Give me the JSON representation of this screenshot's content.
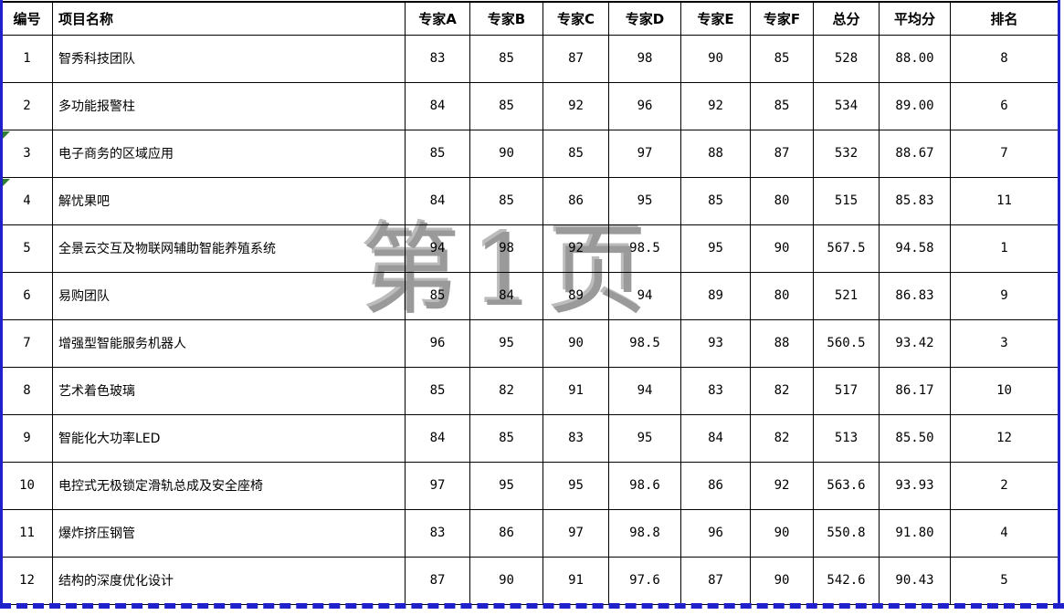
{
  "watermark": {
    "text": "第1页"
  },
  "colors": {
    "page_break_blue": "#2121cc",
    "watermark_gray": "#9a9a9a",
    "error_indicator_green": "#2e7d32",
    "grid_black": "#000000"
  },
  "table": {
    "headers": [
      {
        "key": "id",
        "label": "编号"
      },
      {
        "key": "name",
        "label": "项目名称"
      },
      {
        "key": "expert_a",
        "label": "专家A"
      },
      {
        "key": "expert_b",
        "label": "专家B"
      },
      {
        "key": "expert_c",
        "label": "专家C"
      },
      {
        "key": "expert_d",
        "label": "专家D"
      },
      {
        "key": "expert_e",
        "label": "专家E"
      },
      {
        "key": "expert_f",
        "label": "专家F"
      },
      {
        "key": "total",
        "label": "总分"
      },
      {
        "key": "average",
        "label": "平均分"
      },
      {
        "key": "rank",
        "label": "排名"
      }
    ],
    "error_indicator_rows": [
      3,
      4
    ],
    "rows": [
      {
        "id": "1",
        "name": "智秀科技团队",
        "expert_a": "83",
        "expert_b": "85",
        "expert_c": "87",
        "expert_d": "98",
        "expert_e": "90",
        "expert_f": "85",
        "total": "528",
        "average": "88.00",
        "rank": "8"
      },
      {
        "id": "2",
        "name": "多功能报警柱",
        "expert_a": "84",
        "expert_b": "85",
        "expert_c": "92",
        "expert_d": "96",
        "expert_e": "92",
        "expert_f": "85",
        "total": "534",
        "average": "89.00",
        "rank": "6"
      },
      {
        "id": "3",
        "name": "电子商务的区域应用",
        "expert_a": "85",
        "expert_b": "90",
        "expert_c": "85",
        "expert_d": "97",
        "expert_e": "88",
        "expert_f": "87",
        "total": "532",
        "average": "88.67",
        "rank": "7"
      },
      {
        "id": "4",
        "name": "解忧果吧",
        "expert_a": "84",
        "expert_b": "85",
        "expert_c": "86",
        "expert_d": "95",
        "expert_e": "85",
        "expert_f": "80",
        "total": "515",
        "average": "85.83",
        "rank": "11"
      },
      {
        "id": "5",
        "name": "全景云交互及物联网辅助智能养殖系统",
        "expert_a": "94",
        "expert_b": "98",
        "expert_c": "92",
        "expert_d": "98.5",
        "expert_e": "95",
        "expert_f": "90",
        "total": "567.5",
        "average": "94.58",
        "rank": "1"
      },
      {
        "id": "6",
        "name": "易购团队",
        "expert_a": "85",
        "expert_b": "84",
        "expert_c": "89",
        "expert_d": "94",
        "expert_e": "89",
        "expert_f": "80",
        "total": "521",
        "average": "86.83",
        "rank": "9"
      },
      {
        "id": "7",
        "name": "增强型智能服务机器人",
        "expert_a": "96",
        "expert_b": "95",
        "expert_c": "90",
        "expert_d": "98.5",
        "expert_e": "93",
        "expert_f": "88",
        "total": "560.5",
        "average": "93.42",
        "rank": "3"
      },
      {
        "id": "8",
        "name": "艺术着色玻璃",
        "expert_a": "85",
        "expert_b": "82",
        "expert_c": "91",
        "expert_d": "94",
        "expert_e": "83",
        "expert_f": "82",
        "total": "517",
        "average": "86.17",
        "rank": "10"
      },
      {
        "id": "9",
        "name": "智能化大功率LED",
        "expert_a": "84",
        "expert_b": "85",
        "expert_c": "83",
        "expert_d": "95",
        "expert_e": "84",
        "expert_f": "82",
        "total": "513",
        "average": "85.50",
        "rank": "12"
      },
      {
        "id": "10",
        "name": "电控式无极锁定滑轨总成及安全座椅",
        "expert_a": "97",
        "expert_b": "95",
        "expert_c": "95",
        "expert_d": "98.6",
        "expert_e": "86",
        "expert_f": "92",
        "total": "563.6",
        "average": "93.93",
        "rank": "2"
      },
      {
        "id": "11",
        "name": "爆炸挤压钢管",
        "expert_a": "83",
        "expert_b": "86",
        "expert_c": "97",
        "expert_d": "98.8",
        "expert_e": "96",
        "expert_f": "90",
        "total": "550.8",
        "average": "91.80",
        "rank": "4"
      },
      {
        "id": "12",
        "name": "结构的深度优化设计",
        "expert_a": "87",
        "expert_b": "90",
        "expert_c": "91",
        "expert_d": "97.6",
        "expert_e": "87",
        "expert_f": "90",
        "total": "542.6",
        "average": "90.43",
        "rank": "5"
      }
    ]
  }
}
